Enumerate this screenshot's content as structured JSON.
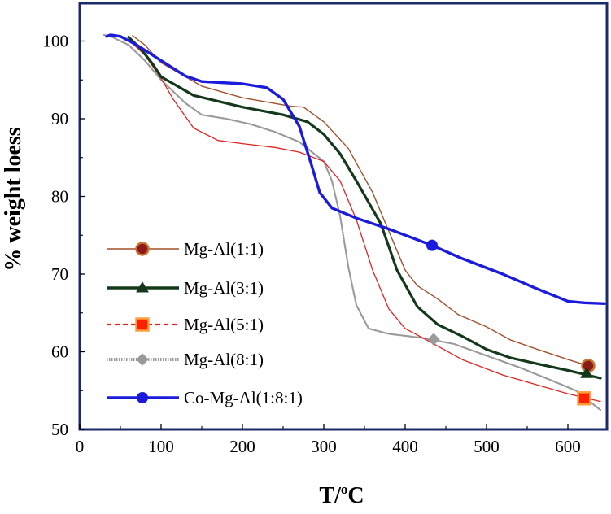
{
  "chart_data": {
    "type": "line",
    "title": "",
    "xlabel": "T/oC",
    "xlabel_main": "T/",
    "xlabel_sup": "o",
    "xlabel_tail": "C",
    "ylabel": "% weight loess",
    "xlim": [
      0,
      645
    ],
    "ylim": [
      50,
      105
    ],
    "xticks": [
      0,
      100,
      200,
      300,
      400,
      500,
      600
    ],
    "yticks": [
      50,
      60,
      70,
      80,
      90,
      100
    ],
    "xtick_labels": [
      "0",
      "100",
      "200",
      "300",
      "400",
      "500",
      "600"
    ],
    "ytick_labels": [
      "50",
      "60",
      "70",
      "80",
      "90",
      "100"
    ],
    "legend_position": "left",
    "series": [
      {
        "name": "Mg-Al(1:1)",
        "color": "#a0522d",
        "marker": "circle",
        "marker_fill": "#8b1a1a",
        "marker_stroke": "#c8762e",
        "marker_at": [
          625,
          58.2
        ],
        "points": [
          [
            65,
            100.7
          ],
          [
            80,
            99.5
          ],
          [
            100,
            97.2
          ],
          [
            150,
            94.2
          ],
          [
            200,
            92.7
          ],
          [
            260,
            91.6
          ],
          [
            275,
            91.5
          ],
          [
            300,
            89.6
          ],
          [
            330,
            86.2
          ],
          [
            360,
            80.5
          ],
          [
            380,
            75.5
          ],
          [
            400,
            70.5
          ],
          [
            415,
            68.5
          ],
          [
            440,
            66.8
          ],
          [
            465,
            64.8
          ],
          [
            500,
            63.2
          ],
          [
            530,
            61.5
          ],
          [
            560,
            60.4
          ],
          [
            600,
            59.0
          ],
          [
            625,
            58.2
          ]
        ]
      },
      {
        "name": "Mg-Al(3:1)",
        "color": "#14381a",
        "marker": "triangle",
        "marker_fill": "#14381a",
        "marker_stroke": "#14381a",
        "marker_at": [
          623,
          57.2
        ],
        "points": [
          [
            60,
            100.5
          ],
          [
            75,
            99.0
          ],
          [
            90,
            97.0
          ],
          [
            100,
            95.4
          ],
          [
            140,
            93.0
          ],
          [
            200,
            91.5
          ],
          [
            250,
            90.5
          ],
          [
            280,
            89.6
          ],
          [
            300,
            88.0
          ],
          [
            320,
            85.5
          ],
          [
            340,
            82.0
          ],
          [
            370,
            76.5
          ],
          [
            390,
            70.5
          ],
          [
            415,
            65.8
          ],
          [
            440,
            63.5
          ],
          [
            470,
            62.0
          ],
          [
            500,
            60.3
          ],
          [
            530,
            59.2
          ],
          [
            560,
            58.5
          ],
          [
            600,
            57.6
          ],
          [
            640,
            56.6
          ]
        ]
      },
      {
        "name": "Mg-Al(5:1)",
        "color": "#e02424",
        "marker": "square",
        "marker_fill": "#ff2000",
        "marker_stroke": "#ffa040",
        "marker_at": [
          620,
          54.0
        ],
        "points": [
          [
            60,
            100.2
          ],
          [
            80,
            98.2
          ],
          [
            100,
            95.2
          ],
          [
            115,
            92.5
          ],
          [
            140,
            88.8
          ],
          [
            170,
            87.2
          ],
          [
            200,
            86.8
          ],
          [
            240,
            86.3
          ],
          [
            270,
            85.7
          ],
          [
            300,
            84.5
          ],
          [
            320,
            82.0
          ],
          [
            340,
            77.0
          ],
          [
            360,
            70.5
          ],
          [
            380,
            65.5
          ],
          [
            400,
            63.0
          ],
          [
            430,
            61.3
          ],
          [
            470,
            59.0
          ],
          [
            520,
            57.0
          ],
          [
            560,
            55.8
          ],
          [
            600,
            54.6
          ],
          [
            640,
            53.6
          ]
        ]
      },
      {
        "name": "Mg-Al(8:1)",
        "color": "#9a9a9a",
        "marker": "diamond",
        "marker_fill": "#9a9a9a",
        "marker_stroke": "#9a9a9a",
        "marker_at": [
          435,
          61.6
        ],
        "points": [
          [
            30,
            100.8
          ],
          [
            40,
            100.5
          ],
          [
            60,
            99.5
          ],
          [
            80,
            97.5
          ],
          [
            100,
            95.0
          ],
          [
            130,
            92.0
          ],
          [
            150,
            90.5
          ],
          [
            180,
            90.0
          ],
          [
            210,
            89.3
          ],
          [
            240,
            88.3
          ],
          [
            270,
            87.0
          ],
          [
            300,
            84.5
          ],
          [
            310,
            82.0
          ],
          [
            320,
            77.5
          ],
          [
            330,
            71.0
          ],
          [
            340,
            66.0
          ],
          [
            355,
            63.0
          ],
          [
            380,
            62.3
          ],
          [
            420,
            61.8
          ],
          [
            460,
            61.0
          ],
          [
            500,
            59.5
          ],
          [
            540,
            58.0
          ],
          [
            580,
            56.3
          ],
          [
            610,
            55.0
          ],
          [
            640,
            52.5
          ]
        ]
      },
      {
        "name": "Co-Mg-Al(1:8:1)",
        "color": "#1b1bdc",
        "marker": "circle",
        "marker_fill": "#1b1bdc",
        "marker_stroke": "#1b1bdc",
        "marker_at": [
          433,
          73.7
        ],
        "points": [
          [
            33,
            100.6
          ],
          [
            38,
            100.8
          ],
          [
            50,
            100.6
          ],
          [
            70,
            99.5
          ],
          [
            100,
            97.5
          ],
          [
            130,
            95.5
          ],
          [
            150,
            94.8
          ],
          [
            200,
            94.5
          ],
          [
            230,
            94.0
          ],
          [
            250,
            92.5
          ],
          [
            270,
            89.0
          ],
          [
            285,
            84.0
          ],
          [
            295,
            80.5
          ],
          [
            310,
            78.5
          ],
          [
            340,
            77.2
          ],
          [
            380,
            75.8
          ],
          [
            433,
            73.7
          ],
          [
            470,
            72.0
          ],
          [
            520,
            70.0
          ],
          [
            560,
            68.2
          ],
          [
            600,
            66.5
          ],
          [
            620,
            66.3
          ],
          [
            645,
            66.2
          ]
        ]
      }
    ]
  }
}
